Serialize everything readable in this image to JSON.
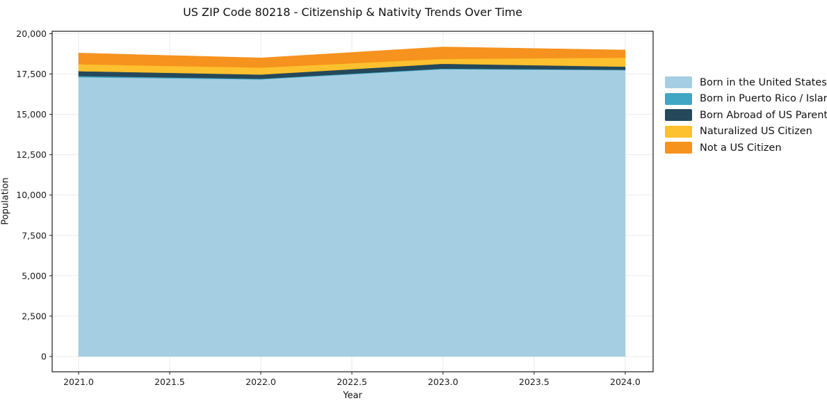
{
  "page_title": "US ZIP Code 80218 - Citizenship & Nativity Trends Over Time",
  "chart_data": {
    "type": "area",
    "stacked": true,
    "title": "US ZIP Code 80218 - Citizenship & Nativity Trends Over Time",
    "xlabel": "Year",
    "ylabel": "Population",
    "x": [
      2021,
      2022,
      2023,
      2024
    ],
    "series": [
      {
        "name": "Born in the United States",
        "color": "#a6cee3",
        "values": [
          17300,
          17170,
          17800,
          17740
        ]
      },
      {
        "name": "Born in Puerto Rico / Islands",
        "color": "#41a6c3",
        "values": [
          80,
          40,
          40,
          30
        ]
      },
      {
        "name": "Born Abroad of US Parent(s)",
        "color": "#25485a",
        "values": [
          300,
          260,
          300,
          190
        ]
      },
      {
        "name": "Naturalized US Citizen",
        "color": "#fdc02e",
        "values": [
          430,
          430,
          300,
          560
        ]
      },
      {
        "name": "Not a US Citizen",
        "color": "#f6921e",
        "values": [
          690,
          600,
          740,
          470
        ]
      }
    ],
    "totals": [
      18800,
      18500,
      19180,
      18990
    ],
    "x_ticks": [
      {
        "value": 2021.0,
        "label": "2021.0"
      },
      {
        "value": 2021.5,
        "label": "2021.5"
      },
      {
        "value": 2022.0,
        "label": "2022.0"
      },
      {
        "value": 2022.5,
        "label": "2022.5"
      },
      {
        "value": 2023.0,
        "label": "2023.0"
      },
      {
        "value": 2023.5,
        "label": "2023.5"
      },
      {
        "value": 2024.0,
        "label": "2024.0"
      }
    ],
    "y_ticks": [
      {
        "value": 0,
        "label": "0"
      },
      {
        "value": 2500,
        "label": "2,500"
      },
      {
        "value": 5000,
        "label": "5,000"
      },
      {
        "value": 7500,
        "label": "7,500"
      },
      {
        "value": 10000,
        "label": "10,000"
      },
      {
        "value": 12500,
        "label": "12,500"
      },
      {
        "value": 15000,
        "label": "15,000"
      },
      {
        "value": 17500,
        "label": "17,500"
      },
      {
        "value": 20000,
        "label": "20,000"
      }
    ],
    "xlim": [
      2020.855,
      2024.153
    ],
    "ylim": [
      -950,
      20150
    ],
    "grid": true,
    "grid_color": "#ebebeb",
    "spine_color": "#1a1a1a",
    "background": "#ffffff",
    "legend_position": "right"
  }
}
